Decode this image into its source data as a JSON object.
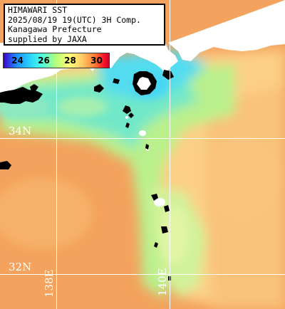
{
  "info": {
    "lines": [
      "HIMAWARI SST",
      "2025/08/19 19(UTC) 3H Comp.",
      "Kanagawa Prefecture",
      "supplied by JAXA"
    ]
  },
  "colorbar": {
    "ticks": [
      "24",
      "26",
      "28",
      "30"
    ],
    "tick_values": [
      24,
      26,
      28,
      30
    ],
    "range": [
      23,
      31
    ],
    "colors": [
      "#3c00c8",
      "#1e8cff",
      "#28d2ff",
      "#50ffdc",
      "#b4ff78",
      "#ffff78",
      "#ffc864",
      "#ff7832",
      "#ff1428",
      "#c8002d"
    ]
  },
  "grid": {
    "lat_labels": [
      "34N",
      "32N"
    ],
    "lon_labels": [
      "138E",
      "140E"
    ]
  },
  "colors": {
    "land": "#ffffff",
    "missing": "#000000",
    "grid_line": "#ffffff",
    "ocean_warm": "#f3a35d",
    "ocean_mid": "#fccf86",
    "ocean_cool": "#b9f08c",
    "ocean_cold": "#72e8c8",
    "ocean_coldest": "#52dcef"
  }
}
